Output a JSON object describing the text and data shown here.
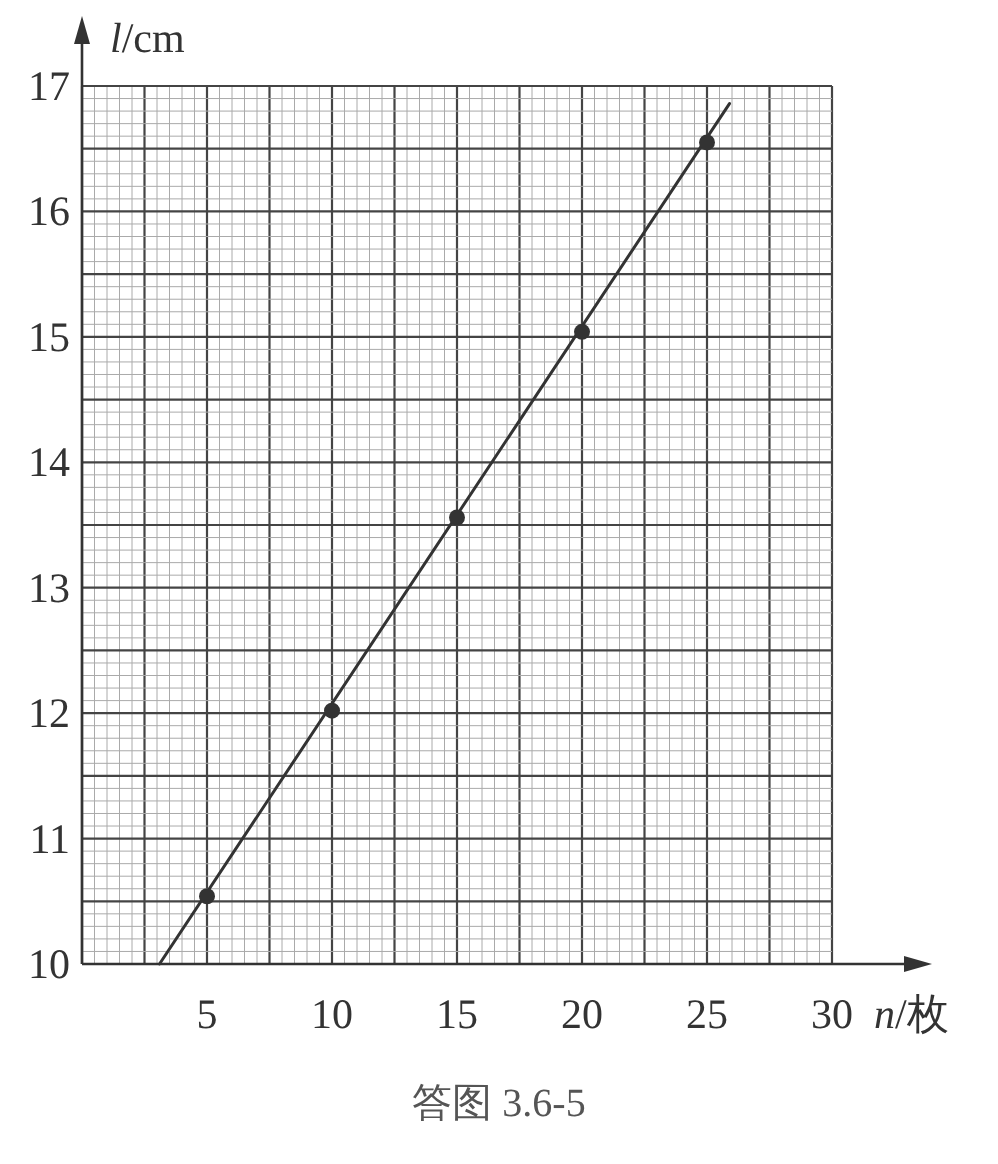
{
  "chart_data": {
    "type": "scatter",
    "xlabel": "*n*/枚",
    "ylabel": "*l*/cm",
    "annotations": [
      "答图 3.6-5"
    ],
    "xlim": [
      0,
      30
    ],
    "ylim": [
      10,
      17
    ],
    "xticks": [
      5,
      10,
      15,
      20,
      25,
      30
    ],
    "yticks": [
      10,
      11,
      12,
      13,
      14,
      15,
      16,
      17
    ],
    "grid": true,
    "marker": "circle",
    "series": [
      {
        "color": "#333333",
        "x": [
          5,
          10,
          15,
          20,
          25
        ],
        "values": [
          10.54,
          12.02,
          13.56,
          15.04,
          16.55
        ]
      },
      {
        "type": "line",
        "color": "#333333",
        "marker": "none",
        "x": [
          3.1,
          25.9
        ],
        "values": [
          10,
          16.86
        ]
      }
    ]
  }
}
